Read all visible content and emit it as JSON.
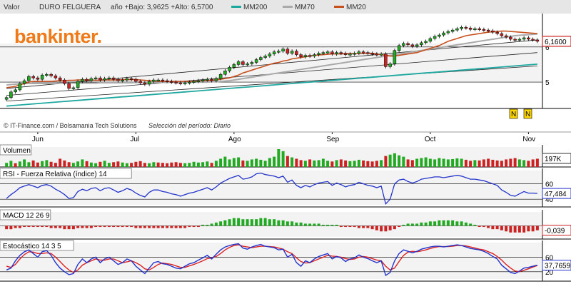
{
  "header": {
    "label": "Valor",
    "ticker": "DURO FELGUERA",
    "stats": "año +Bajo: 3,9625 +Alto: 6,5700"
  },
  "legend": [
    {
      "label": "MM200",
      "color": "#1fa8a0"
    },
    {
      "label": "MM70",
      "color": "#aaaaaa"
    },
    {
      "label": "MM20",
      "color": "#c8501e"
    }
  ],
  "brand": "bankinter.",
  "source": "© IT-Finance.com / Bolsamania Tech Solutions",
  "period": "Selección del período: Diario",
  "news_flags": [
    "N",
    "N"
  ],
  "colors": {
    "up": "#22aa22",
    "down": "#cc2222",
    "panel_bg": "#ffffff",
    "band": "#f3f3f3",
    "blue": "#2233cc",
    "red": "#dd2222",
    "brand": "#ee7a1a"
  },
  "chart_data": [
    {
      "type": "candlestick",
      "name": "price",
      "x_labels": [
        "Jun",
        "Jul",
        "Ago",
        "Sep",
        "Oct",
        "Nov"
      ],
      "x_label_index": [
        7,
        29,
        51,
        73,
        95,
        117
      ],
      "n_sessions": 120,
      "ylim": [
        4.25,
        6.95
      ],
      "y_ticks": [
        "6",
        "5"
      ],
      "y_tick_values": [
        6,
        5
      ],
      "last_value": "6,1600",
      "last": 6.16,
      "close": [
        4.56,
        4.72,
        4.78,
        4.96,
        5.04,
        5.16,
        5.12,
        5.08,
        5.2,
        5.22,
        5.18,
        5.12,
        5.06,
        4.96,
        4.82,
        4.84,
        5.02,
        5.08,
        5.04,
        5.1,
        5.12,
        5.06,
        5.1,
        5.12,
        5.08,
        5.04,
        5.06,
        5.1,
        5.08,
        5.02,
        4.98,
        4.94,
        5.02,
        5.06,
        5.06,
        5.04,
        5.02,
        5.0,
        4.98,
        4.96,
        4.98,
        5.0,
        5.02,
        5.04,
        5.06,
        5.08,
        5.04,
        5.1,
        5.22,
        5.32,
        5.42,
        5.5,
        5.58,
        5.5,
        5.52,
        5.56,
        5.64,
        5.7,
        5.74,
        5.8,
        5.86,
        5.88,
        5.94,
        5.82,
        5.88,
        5.78,
        5.72,
        5.76,
        5.74,
        5.78,
        5.82,
        5.84,
        5.86,
        5.8,
        5.84,
        5.82,
        5.78,
        5.8,
        5.82,
        5.86,
        5.84,
        5.82,
        5.8,
        5.78,
        5.8,
        5.44,
        5.52,
        5.9,
        6.04,
        6.1,
        6.06,
        6.02,
        6.06,
        6.12,
        6.16,
        6.24,
        6.3,
        6.34,
        6.4,
        6.44,
        6.48,
        6.52,
        6.56,
        6.54,
        6.5,
        6.52,
        6.5,
        6.48,
        6.46,
        6.42,
        6.38,
        6.32,
        6.28,
        6.22,
        6.2,
        6.22,
        6.26,
        6.22,
        6.2,
        6.16
      ],
      "regression": {
        "mid": [
          4.62,
          5.84
        ],
        "upper": [
          4.82,
          6.2
        ],
        "lower": [
          4.46,
          5.46
        ]
      },
      "mm20": [
        4.84,
        4.86,
        4.88,
        4.92,
        4.96,
        5.0,
        5.02,
        5.02,
        5.02,
        5.02,
        5.02,
        5.03,
        5.04,
        5.04,
        5.05,
        5.05,
        5.06,
        5.06,
        5.06,
        5.06,
        5.05,
        5.05,
        5.06,
        5.06,
        5.06,
        5.06,
        5.07,
        5.07,
        5.07,
        5.07,
        5.06,
        5.05,
        5.04,
        5.03,
        5.02,
        5.02,
        5.02,
        5.02,
        5.02,
        5.02,
        5.02,
        5.02,
        5.02,
        5.03,
        5.04,
        5.04,
        5.05,
        5.06,
        5.08,
        5.1,
        5.12,
        5.16,
        5.2,
        5.26,
        5.3,
        5.34,
        5.38,
        5.42,
        5.46,
        5.5,
        5.54,
        5.56,
        5.6,
        5.62,
        5.66,
        5.68,
        5.7,
        5.72,
        5.74,
        5.76,
        5.77,
        5.78,
        5.79,
        5.8,
        5.8,
        5.8,
        5.81,
        5.81,
        5.81,
        5.82,
        5.82,
        5.82,
        5.82,
        5.8,
        5.78,
        5.76,
        5.74,
        5.74,
        5.76,
        5.78,
        5.8,
        5.82,
        5.84,
        5.88,
        5.92,
        5.96,
        6.0,
        6.04,
        6.1,
        6.16,
        6.2,
        6.24,
        6.28,
        6.32,
        6.34,
        6.36,
        6.38,
        6.4,
        6.42,
        6.43,
        6.44,
        6.45,
        6.45,
        6.44,
        6.43,
        6.42,
        6.41,
        6.4,
        6.39,
        6.38
      ],
      "mm70": [
        4.92,
        4.93,
        4.94,
        4.95,
        4.96,
        4.96,
        4.96,
        4.96,
        4.96,
        4.96,
        4.96,
        4.96,
        4.97,
        4.97,
        4.97,
        4.97,
        4.97,
        4.97,
        4.97,
        4.97,
        4.97,
        4.98,
        4.98,
        4.98,
        4.98,
        4.98,
        4.98,
        4.98,
        4.98,
        4.99,
        4.99,
        4.99,
        4.99,
        4.99,
        4.99,
        4.99,
        4.99,
        4.99,
        5.0,
        5.0,
        5.0,
        5.0,
        5.0,
        5.0,
        5.0,
        5.0,
        5.01,
        5.01,
        5.02,
        5.03,
        5.04,
        5.06,
        5.08,
        5.1,
        5.12,
        5.14,
        5.16,
        5.18,
        5.2,
        5.22,
        5.24,
        5.26,
        5.28,
        5.3,
        5.32,
        5.34,
        5.36,
        5.38,
        5.4,
        5.42,
        5.44,
        5.46,
        5.48,
        5.5,
        5.52,
        5.54,
        5.56,
        5.58,
        5.6,
        5.62,
        5.64,
        5.66,
        5.68,
        5.7,
        5.72,
        5.74,
        5.76,
        5.78,
        5.8,
        5.82,
        5.84,
        5.86,
        5.88,
        5.9,
        5.92,
        5.94,
        5.96,
        5.98,
        6.0,
        6.02,
        6.04,
        6.06,
        6.08,
        6.1,
        6.12,
        6.14,
        6.16,
        6.18,
        6.2,
        6.22,
        6.24,
        6.26,
        6.28,
        6.3,
        6.32,
        6.33,
        6.34,
        6.35,
        6.36,
        6.37
      ],
      "mm200": [
        4.32,
        4.33,
        4.34,
        4.35,
        4.36,
        4.37,
        4.38,
        4.39,
        4.4,
        4.41,
        4.42,
        4.43,
        4.44,
        4.45,
        4.46,
        4.47,
        4.48,
        4.49,
        4.5,
        4.51,
        4.52,
        4.53,
        4.54,
        4.55,
        4.56,
        4.57,
        4.58,
        4.59,
        4.6,
        4.61,
        4.62,
        4.63,
        4.64,
        4.65,
        4.66,
        4.67,
        4.68,
        4.69,
        4.7,
        4.71,
        4.72,
        4.73,
        4.74,
        4.75,
        4.76,
        4.77,
        4.78,
        4.79,
        4.8,
        4.81,
        4.82,
        4.83,
        4.84,
        4.85,
        4.86,
        4.87,
        4.88,
        4.89,
        4.9,
        4.91,
        4.92,
        4.93,
        4.94,
        4.95,
        4.96,
        4.97,
        4.98,
        4.99,
        5.0,
        5.01,
        5.02,
        5.03,
        5.04,
        5.05,
        5.06,
        5.07,
        5.08,
        5.09,
        5.1,
        5.11,
        5.12,
        5.13,
        5.14,
        5.15,
        5.16,
        5.17,
        5.18,
        5.19,
        5.2,
        5.21,
        5.22,
        5.23,
        5.24,
        5.25,
        5.26,
        5.27,
        5.28,
        5.29,
        5.3,
        5.31,
        5.32,
        5.33,
        5.34,
        5.35,
        5.36,
        5.37,
        5.38,
        5.39,
        5.4,
        5.41,
        5.42,
        5.43,
        5.44,
        5.45,
        5.46,
        5.47,
        5.48,
        5.49,
        5.5,
        5.51
      ]
    },
    {
      "type": "bar",
      "name": "Volumen",
      "title": "Volumen",
      "last_value": "197K",
      "values": [
        60,
        90,
        55,
        80,
        110,
        70,
        95,
        65,
        85,
        100,
        75,
        60,
        120,
        95,
        70,
        60,
        80,
        110,
        85,
        65,
        55,
        75,
        90,
        60,
        70,
        80,
        65,
        55,
        60,
        75,
        85,
        60,
        55,
        70,
        65,
        60,
        55,
        65,
        70,
        60,
        55,
        60,
        75,
        65,
        70,
        80,
        60,
        90,
        120,
        150,
        110,
        130,
        140,
        95,
        90,
        110,
        120,
        105,
        90,
        130,
        150,
        260,
        230,
        160,
        140,
        120,
        100,
        90,
        110,
        95,
        100,
        120,
        90,
        80,
        100,
        110,
        95,
        85,
        90,
        105,
        95,
        85,
        80,
        90,
        100,
        160,
        180,
        200,
        170,
        150,
        110,
        100,
        120,
        130,
        140,
        120,
        110,
        130,
        120,
        110,
        115,
        125,
        120,
        105,
        90,
        100,
        95,
        110,
        120,
        105,
        95,
        90,
        110,
        120,
        130,
        110,
        100,
        90,
        110,
        120
      ],
      "up": [
        1,
        1,
        0,
        1,
        1,
        1,
        0,
        0,
        1,
        1,
        0,
        0,
        0,
        0,
        0,
        1,
        1,
        1,
        0,
        1,
        1,
        0,
        1,
        1,
        0,
        0,
        1,
        1,
        0,
        0,
        0,
        0,
        1,
        1,
        0,
        0,
        0,
        0,
        0,
        0,
        1,
        1,
        1,
        1,
        1,
        1,
        0,
        1,
        1,
        1,
        1,
        1,
        1,
        0,
        1,
        1,
        1,
        1,
        1,
        1,
        1,
        1,
        1,
        0,
        1,
        0,
        0,
        1,
        0,
        1,
        1,
        1,
        1,
        0,
        1,
        0,
        0,
        1,
        1,
        1,
        0,
        0,
        0,
        0,
        1,
        0,
        1,
        1,
        1,
        1,
        0,
        0,
        1,
        1,
        1,
        1,
        1,
        1,
        1,
        1,
        1,
        1,
        1,
        0,
        0,
        1,
        0,
        0,
        0,
        0,
        0,
        0,
        0,
        0,
        0,
        1,
        1,
        0,
        0,
        0
      ]
    },
    {
      "type": "line",
      "name": "RSI",
      "title": "RSI - Fuerza Relativa (índice) 14",
      "ylim": [
        30,
        80
      ],
      "y_ticks": [
        "60",
        "40"
      ],
      "y_tick_values": [
        60,
        40
      ],
      "last_value": "47,484",
      "values": [
        41,
        46,
        50,
        55,
        57,
        59,
        57,
        55,
        58,
        59,
        57,
        53,
        50,
        46,
        41,
        42,
        50,
        53,
        51,
        54,
        55,
        51,
        54,
        55,
        52,
        49,
        51,
        54,
        52,
        48,
        45,
        43,
        49,
        52,
        52,
        50,
        49,
        47,
        46,
        44,
        46,
        48,
        49,
        51,
        53,
        55,
        52,
        56,
        61,
        64,
        67,
        69,
        71,
        66,
        67,
        69,
        73,
        74,
        72,
        71,
        70,
        68,
        70,
        62,
        65,
        58,
        55,
        58,
        56,
        59,
        61,
        62,
        63,
        58,
        61,
        59,
        56,
        58,
        59,
        62,
        60,
        58,
        57,
        55,
        57,
        34,
        40,
        60,
        65,
        66,
        63,
        61,
        63,
        66,
        67,
        68,
        69,
        69,
        68,
        69,
        70,
        71,
        70,
        68,
        66,
        66,
        65,
        64,
        62,
        60,
        58,
        52,
        49,
        45,
        44,
        47,
        50,
        48,
        48,
        47.5
      ]
    },
    {
      "type": "bar",
      "name": "MACD",
      "title": "MACD 12 26 9",
      "last_value": "-0,039",
      "ylim": [
        -0.1,
        0.1
      ],
      "values": [
        -0.03,
        -0.03,
        -0.02,
        -0.02,
        -0.01,
        -0.01,
        -0.01,
        -0.01,
        -0.01,
        -0.01,
        -0.02,
        -0.02,
        -0.02,
        -0.03,
        -0.03,
        -0.03,
        -0.02,
        -0.02,
        -0.02,
        -0.02,
        -0.01,
        -0.01,
        -0.01,
        -0.01,
        -0.01,
        -0.01,
        -0.01,
        -0.01,
        -0.01,
        -0.02,
        -0.02,
        -0.02,
        -0.02,
        -0.02,
        -0.02,
        -0.02,
        -0.02,
        -0.02,
        -0.02,
        -0.02,
        -0.02,
        -0.01,
        -0.01,
        -0.01,
        0.01,
        0.01,
        0.02,
        0.03,
        0.04,
        0.05,
        0.06,
        0.07,
        0.07,
        0.06,
        0.06,
        0.06,
        0.06,
        0.07,
        0.07,
        0.06,
        0.06,
        0.05,
        0.05,
        0.04,
        0.04,
        0.03,
        0.03,
        0.02,
        0.02,
        0.02,
        0.02,
        0.01,
        0.01,
        0.01,
        0.01,
        -0.01,
        -0.01,
        -0.01,
        -0.01,
        -0.02,
        -0.02,
        -0.02,
        -0.03,
        -0.04,
        -0.05,
        -0.05,
        -0.04,
        -0.03,
        -0.01,
        0.01,
        0.02,
        0.02,
        0.02,
        0.03,
        0.03,
        0.04,
        0.04,
        0.05,
        0.05,
        0.05,
        0.05,
        0.04,
        0.04,
        0.03,
        0.02,
        0.01,
        -0.01,
        -0.01,
        -0.02,
        -0.03,
        -0.03,
        -0.04,
        -0.05,
        -0.06,
        -0.06,
        -0.06,
        -0.06,
        -0.05,
        -0.05,
        -0.04
      ]
    },
    {
      "type": "line",
      "name": "Estocastico",
      "title": "Estocástico 14 3 5",
      "ylim": [
        0,
        100
      ],
      "y_ticks": [
        "60",
        "20"
      ],
      "y_tick_values": [
        60,
        20
      ],
      "last_value": "37,7659",
      "k": [
        25,
        30,
        50,
        65,
        75,
        80,
        70,
        60,
        75,
        78,
        65,
        45,
        30,
        20,
        12,
        15,
        40,
        55,
        45,
        55,
        60,
        45,
        55,
        60,
        50,
        40,
        45,
        55,
        50,
        35,
        25,
        15,
        30,
        45,
        48,
        42,
        40,
        35,
        30,
        28,
        35,
        42,
        45,
        52,
        58,
        65,
        55,
        68,
        80,
        88,
        92,
        95,
        97,
        85,
        82,
        88,
        92,
        95,
        90,
        88,
        86,
        80,
        82,
        60,
        68,
        45,
        35,
        50,
        45,
        55,
        62,
        66,
        70,
        55,
        62,
        58,
        48,
        55,
        58,
        66,
        60,
        56,
        50,
        45,
        50,
        10,
        18,
        50,
        70,
        80,
        76,
        72,
        76,
        82,
        85,
        88,
        90,
        90,
        88,
        90,
        92,
        94,
        92,
        88,
        84,
        82,
        80,
        76,
        70,
        62,
        55,
        38,
        28,
        18,
        15,
        22,
        30,
        32,
        35,
        38
      ],
      "d": [
        35,
        32,
        40,
        55,
        67,
        75,
        74,
        70,
        70,
        72,
        70,
        60,
        48,
        35,
        25,
        18,
        25,
        38,
        45,
        50,
        55,
        52,
        52,
        55,
        55,
        50,
        45,
        47,
        50,
        45,
        38,
        28,
        25,
        32,
        40,
        44,
        42,
        40,
        36,
        32,
        32,
        36,
        40,
        45,
        50,
        56,
        58,
        62,
        70,
        80,
        87,
        92,
        94,
        90,
        88,
        86,
        88,
        90,
        90,
        89,
        88,
        85,
        82,
        75,
        70,
        58,
        48,
        44,
        45,
        50,
        55,
        60,
        65,
        63,
        62,
        60,
        56,
        54,
        55,
        60,
        62,
        60,
        56,
        52,
        50,
        35,
        25,
        30,
        48,
        65,
        74,
        76,
        75,
        77,
        80,
        84,
        87,
        89,
        89,
        89,
        90,
        92,
        92,
        91,
        88,
        85,
        82,
        80,
        75,
        70,
        62,
        52,
        40,
        30,
        22,
        20,
        24,
        28,
        33,
        37
      ]
    }
  ]
}
